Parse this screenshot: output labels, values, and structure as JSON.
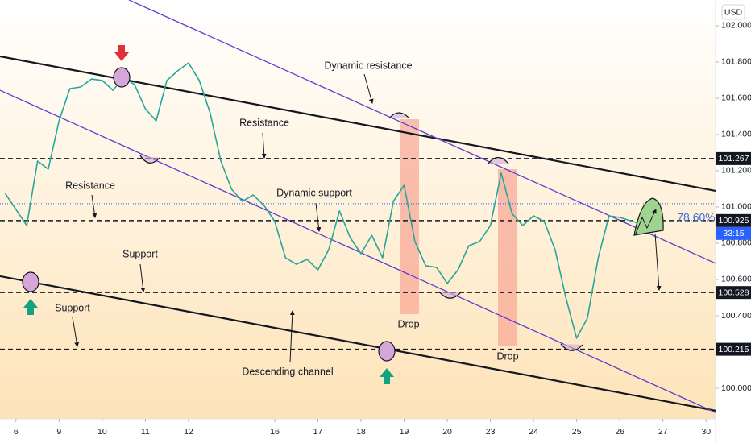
{
  "chart_data": {
    "type": "line",
    "currency": "USD",
    "countdown": "33:15",
    "xlim": [
      -0.37,
      16.22
    ],
    "xticks": [
      {
        "value": 0,
        "label": "6"
      },
      {
        "value": 1,
        "label": "9"
      },
      {
        "value": 2,
        "label": "10"
      },
      {
        "value": 3,
        "label": "11"
      },
      {
        "value": 4,
        "label": "12"
      },
      {
        "value": 6,
        "label": "16"
      },
      {
        "value": 7,
        "label": "17"
      },
      {
        "value": 8,
        "label": "18"
      },
      {
        "value": 9,
        "label": "19"
      },
      {
        "value": 10,
        "label": "20"
      },
      {
        "value": 11,
        "label": "23"
      },
      {
        "value": 12,
        "label": "24"
      },
      {
        "value": 13,
        "label": "25"
      },
      {
        "value": 14,
        "label": "26"
      },
      {
        "value": 15,
        "label": "27"
      },
      {
        "value": 16,
        "label": "30"
      }
    ],
    "ylim": [
      99.831,
      102.142
    ],
    "yticks": [
      {
        "value": 100,
        "label": "100.000"
      },
      {
        "value": 100.4,
        "label": "100.400"
      },
      {
        "value": 100.6,
        "label": "100.600"
      },
      {
        "value": 100.8,
        "label": "100.800"
      },
      {
        "value": 101,
        "label": "101.000"
      },
      {
        "value": 101.2,
        "label": "101.200"
      },
      {
        "value": 101.4,
        "label": "101.400"
      },
      {
        "value": 101.6,
        "label": "101.600"
      },
      {
        "value": 101.8,
        "label": "101.800"
      },
      {
        "value": 102,
        "label": "102.000"
      }
    ],
    "x": [
      -0.25,
      0,
      0.25,
      0.5,
      0.75,
      1,
      1.25,
      1.5,
      1.75,
      2,
      2.25,
      2.5,
      2.75,
      3,
      3.25,
      3.5,
      3.75,
      4,
      4.25,
      4.5,
      4.75,
      5,
      5.25,
      5.5,
      5.75,
      6,
      6.25,
      6.5,
      6.75,
      7,
      7.25,
      7.5,
      7.75,
      8,
      8.25,
      8.5,
      8.75,
      9,
      9.25,
      9.5,
      9.75,
      10,
      10.25,
      10.5,
      10.75,
      11,
      11.25,
      11.5,
      11.75,
      12,
      12.25,
      12.5,
      12.75,
      13,
      13.25,
      13.5,
      13.75,
      14,
      14.25,
      14.5
    ],
    "series": [
      {
        "color": "#26a69a",
        "values": [
          101.075,
          100.986,
          100.898,
          101.253,
          101.209,
          101.475,
          101.653,
          101.662,
          101.706,
          101.698,
          101.644,
          101.715,
          101.675,
          101.542,
          101.475,
          101.698,
          101.751,
          101.795,
          101.698,
          101.52,
          101.253,
          101.098,
          101.031,
          101.066,
          101.009,
          100.92,
          100.72,
          100.684,
          100.711,
          100.653,
          100.764,
          100.978,
          100.831,
          100.742,
          100.844,
          100.72,
          101.031,
          101.12,
          100.809,
          100.676,
          100.667,
          100.578,
          100.653,
          100.786,
          100.809,
          100.898,
          101.187,
          100.964,
          100.898,
          100.951,
          100.92,
          100.764,
          100.498,
          100.276,
          100.387,
          100.72,
          100.951,
          100.942,
          100.924,
          100.906
        ]
      }
    ],
    "levels": [
      101.267,
      100.925,
      100.528,
      100.215
    ],
    "level_color": "#131722",
    "reference_line": {
      "value": 101.018,
      "color": "#2962ff"
    },
    "trendlines": [
      {
        "color": "#131722",
        "x": [
          -0.37,
          16.22
        ],
        "values": [
          101.831,
          101.089
        ]
      },
      {
        "color": "#131722",
        "x": [
          -0.37,
          16.22
        ],
        "values": [
          100.618,
          99.876
        ]
      },
      {
        "color": "#5b3fd1",
        "x": [
          2.62,
          16.22
        ],
        "values": [
          102.142,
          100.689
        ]
      },
      {
        "color": "#5b3fd1",
        "x": [
          -0.37,
          16.22
        ],
        "values": [
          101.644,
          99.866
        ]
      }
    ],
    "annotations": [
      "Dynamic resistance",
      "Resistance",
      "Resistance",
      "Dynamic support",
      "Support",
      "Support",
      "Descending channel",
      "Drop",
      "Drop",
      "78.60%"
    ]
  }
}
